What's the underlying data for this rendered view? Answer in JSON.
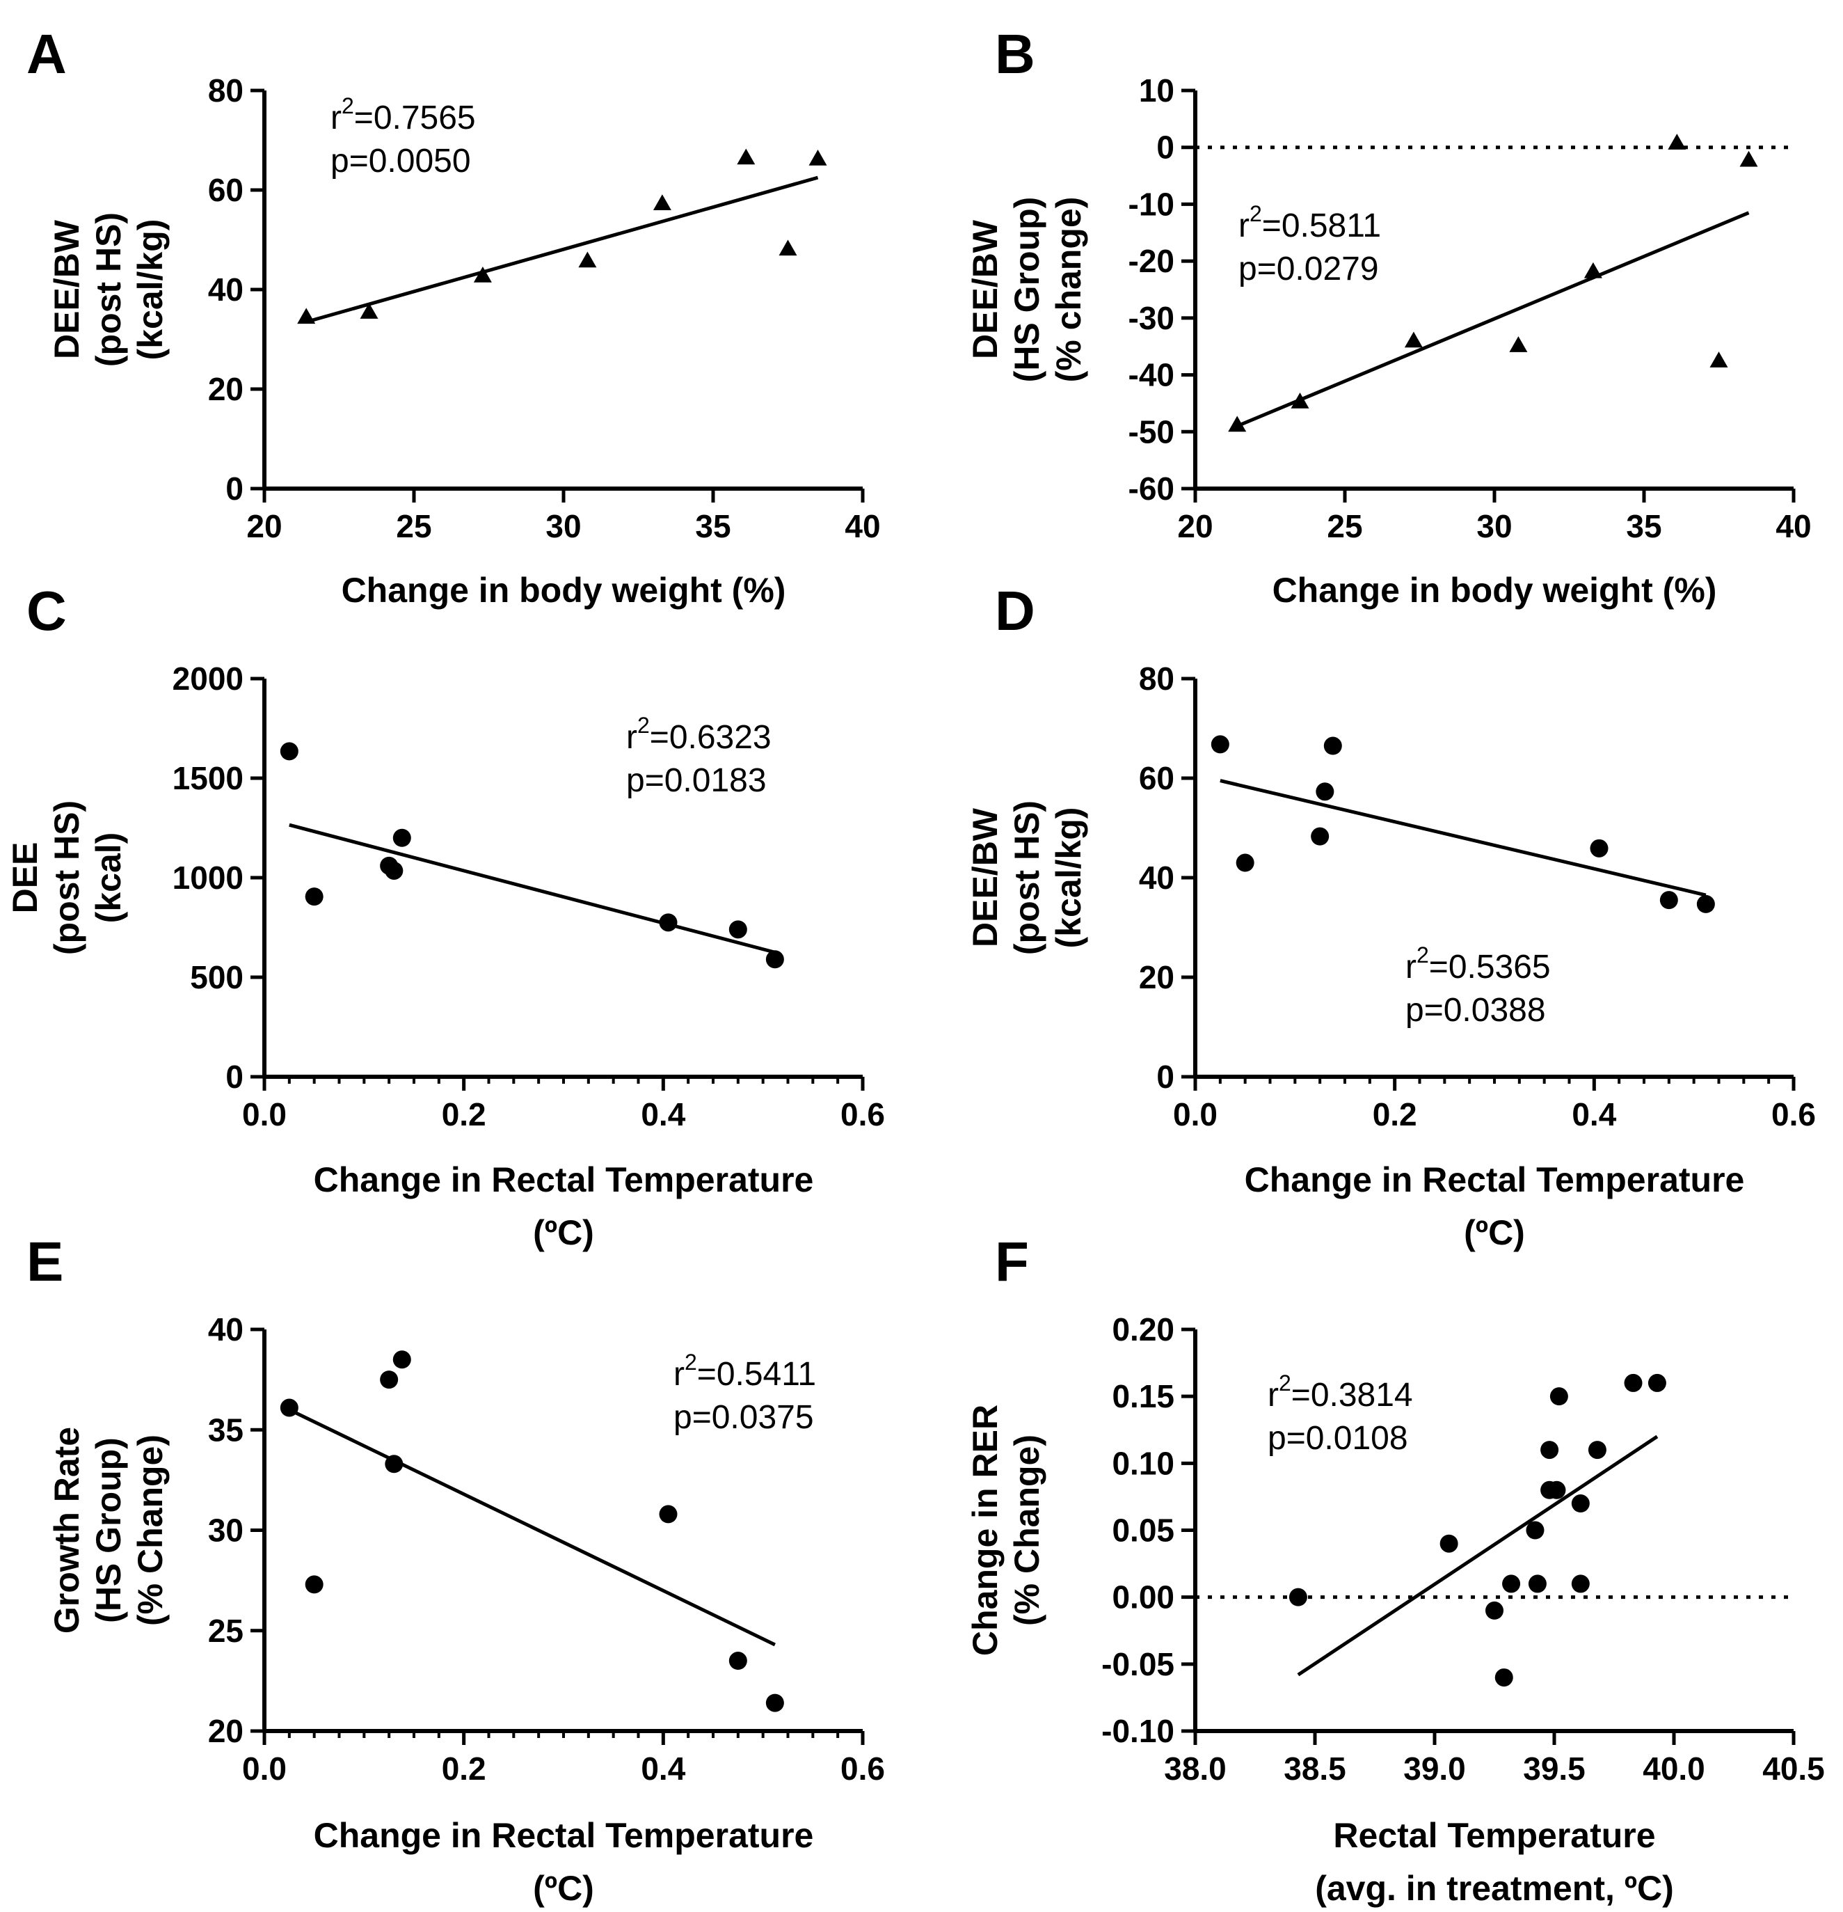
{
  "chart_data": [
    {
      "id": "A",
      "type": "scatter",
      "panel_label": "A",
      "marker": "triangle",
      "xlabel": [
        "Change in body weight (%)"
      ],
      "ylabel": [
        "DEE/BW",
        "(post HS)",
        "(kcal/kg)"
      ],
      "xlim": [
        20,
        40
      ],
      "ylim": [
        0,
        80
      ],
      "xticks": [
        20,
        25,
        30,
        35,
        40
      ],
      "yticks": [
        0,
        20,
        40,
        60,
        80
      ],
      "xtick_labels": [
        "20",
        "25",
        "30",
        "35",
        "40"
      ],
      "ytick_labels": [
        "0",
        "20",
        "40",
        "60",
        "80"
      ],
      "stats": {
        "r2_base": "r",
        "r2_sup": "2",
        "r2_value": "=0.7565",
        "p": "p=0.0050"
      },
      "points": [
        [
          21.4,
          34.5
        ],
        [
          23.5,
          35.5
        ],
        [
          27.3,
          42.8
        ],
        [
          30.8,
          45.8
        ],
        [
          33.3,
          57.3
        ],
        [
          36.1,
          66.5
        ],
        [
          37.5,
          48.2
        ],
        [
          38.5,
          66.3
        ]
      ],
      "fit": [
        [
          21.4,
          33.5
        ],
        [
          38.5,
          62.5
        ]
      ]
    },
    {
      "id": "B",
      "type": "scatter",
      "panel_label": "B",
      "marker": "triangle",
      "xlabel": [
        "Change in body weight (%)"
      ],
      "ylabel": [
        "DEE/BW",
        "(HS Group)",
        "(% change)"
      ],
      "xlim": [
        20,
        40
      ],
      "ylim": [
        -60,
        10
      ],
      "xticks": [
        20,
        25,
        30,
        35,
        40
      ],
      "yticks": [
        -60,
        -50,
        -40,
        -30,
        -20,
        -10,
        0,
        10
      ],
      "xtick_labels": [
        "20",
        "25",
        "30",
        "35",
        "40"
      ],
      "ytick_labels": [
        "-60",
        "-50",
        "-40",
        "-30",
        "-20",
        "-10",
        "0",
        "10"
      ],
      "reference_line": 0,
      "stats": {
        "r2_base": "r",
        "r2_sup": "2",
        "r2_value": "=0.5811",
        "p": "p=0.0279"
      },
      "points": [
        [
          21.4,
          -48.8
        ],
        [
          23.5,
          -44.7
        ],
        [
          27.3,
          -34.0
        ],
        [
          30.8,
          -34.8
        ],
        [
          33.3,
          -21.8
        ],
        [
          36.1,
          0.8
        ],
        [
          37.5,
          -37.5
        ],
        [
          38.5,
          -2.2
        ]
      ],
      "fit": [
        [
          21.4,
          -49.0
        ],
        [
          38.5,
          -11.5
        ]
      ]
    },
    {
      "id": "C",
      "type": "scatter",
      "panel_label": "C",
      "marker": "circle",
      "xlabel": [
        "Change in Rectal Temperature",
        "(ºC)"
      ],
      "ylabel": [
        "DEE",
        "(post HS)",
        "(kcal)"
      ],
      "xlim": [
        0,
        0.6
      ],
      "ylim": [
        0,
        2000
      ],
      "xticks": [
        0,
        0.2,
        0.4,
        0.6
      ],
      "yticks": [
        0,
        500,
        1000,
        1500,
        2000
      ],
      "xtick_labels": [
        "0.0",
        "0.2",
        "0.4",
        "0.6"
      ],
      "ytick_labels": [
        "0",
        "500",
        "1000",
        "1500",
        "2000"
      ],
      "minor_x_step": 0.025,
      "stats": {
        "r2_base": "r",
        "r2_sup": "2",
        "r2_value": "=0.6323",
        "p": "p=0.0183"
      },
      "points": [
        [
          0.025,
          1635
        ],
        [
          0.05,
          905
        ],
        [
          0.125,
          1060
        ],
        [
          0.13,
          1035
        ],
        [
          0.138,
          1200
        ],
        [
          0.405,
          775
        ],
        [
          0.475,
          740
        ],
        [
          0.512,
          590
        ]
      ],
      "fit": [
        [
          0.025,
          1265
        ],
        [
          0.512,
          625
        ]
      ]
    },
    {
      "id": "D",
      "type": "scatter",
      "panel_label": "D",
      "marker": "circle",
      "xlabel": [
        "Change in Rectal Temperature",
        "(ºC)"
      ],
      "ylabel": [
        "DEE/BW",
        "(post HS)",
        "(kcal/kg)"
      ],
      "xlim": [
        0,
        0.6
      ],
      "ylim": [
        0,
        80
      ],
      "xticks": [
        0,
        0.2,
        0.4,
        0.6
      ],
      "yticks": [
        0,
        20,
        40,
        60,
        80
      ],
      "xtick_labels": [
        "0.0",
        "0.2",
        "0.4",
        "0.6"
      ],
      "ytick_labels": [
        "0",
        "20",
        "40",
        "60",
        "80"
      ],
      "minor_x_step": 0.025,
      "stats": {
        "r2_base": "r",
        "r2_sup": "2",
        "r2_value": "=0.5365",
        "p": "p=0.0388"
      },
      "points": [
        [
          0.025,
          66.8
        ],
        [
          0.05,
          43.0
        ],
        [
          0.125,
          48.3
        ],
        [
          0.13,
          57.3
        ],
        [
          0.138,
          66.5
        ],
        [
          0.405,
          45.9
        ],
        [
          0.475,
          35.5
        ],
        [
          0.512,
          34.7
        ]
      ],
      "fit": [
        [
          0.025,
          59.5
        ],
        [
          0.512,
          36.5
        ]
      ]
    },
    {
      "id": "E",
      "type": "scatter",
      "panel_label": "E",
      "marker": "circle",
      "xlabel": [
        "Change in Rectal Temperature",
        "(ºC)"
      ],
      "ylabel": [
        "Growth Rate",
        "(HS Group)",
        "(% Change)"
      ],
      "xlim": [
        0,
        0.6
      ],
      "ylim": [
        20,
        40
      ],
      "xticks": [
        0,
        0.2,
        0.4,
        0.6
      ],
      "yticks": [
        20,
        25,
        30,
        35,
        40
      ],
      "xtick_labels": [
        "0.0",
        "0.2",
        "0.4",
        "0.6"
      ],
      "ytick_labels": [
        "20",
        "25",
        "30",
        "35",
        "40"
      ],
      "minor_x_step": 0.025,
      "stats": {
        "r2_base": "r",
        "r2_sup": "2",
        "r2_value": "=0.5411",
        "p": "p=0.0375"
      },
      "points": [
        [
          0.025,
          36.1
        ],
        [
          0.05,
          27.3
        ],
        [
          0.125,
          37.5
        ],
        [
          0.13,
          33.3
        ],
        [
          0.138,
          38.5
        ],
        [
          0.405,
          30.8
        ],
        [
          0.475,
          23.5
        ],
        [
          0.512,
          21.4
        ]
      ],
      "fit": [
        [
          0.025,
          36.0
        ],
        [
          0.512,
          24.3
        ]
      ]
    },
    {
      "id": "F",
      "type": "scatter",
      "panel_label": "F",
      "marker": "circle",
      "xlabel": [
        "Rectal Temperature",
        "(avg. in treatment, ºC)"
      ],
      "ylabel": [
        "Change in  RER",
        "(% Change)"
      ],
      "xlim": [
        38.0,
        40.5
      ],
      "ylim": [
        -0.1,
        0.2
      ],
      "xticks": [
        38.0,
        38.5,
        39.0,
        39.5,
        40.0,
        40.5
      ],
      "yticks": [
        -0.1,
        -0.05,
        0,
        0.05,
        0.1,
        0.15,
        0.2
      ],
      "xtick_labels": [
        "38.0",
        "38.5",
        "39.0",
        "39.5",
        "40.0",
        "40.5"
      ],
      "ytick_labels": [
        "-0.10",
        "-0.05",
        "0.00",
        "0.05",
        "0.10",
        "0.15",
        "0.20"
      ],
      "reference_line": 0,
      "stats": {
        "r2_base": "r",
        "r2_sup": "2",
        "r2_value": "=0.3814",
        "p": "p=0.0108"
      },
      "points": [
        [
          38.43,
          0.0
        ],
        [
          39.06,
          0.04
        ],
        [
          39.25,
          -0.01
        ],
        [
          39.29,
          -0.06
        ],
        [
          39.32,
          0.01
        ],
        [
          39.42,
          0.05
        ],
        [
          39.43,
          0.01
        ],
        [
          39.48,
          0.11
        ],
        [
          39.48,
          0.08
        ],
        [
          39.51,
          0.08
        ],
        [
          39.52,
          0.15
        ],
        [
          39.61,
          0.07
        ],
        [
          39.61,
          0.01
        ],
        [
          39.68,
          0.11
        ],
        [
          39.83,
          0.16
        ],
        [
          39.93,
          0.16
        ]
      ],
      "fit": [
        [
          38.43,
          -0.058
        ],
        [
          39.93,
          0.12
        ]
      ]
    }
  ]
}
